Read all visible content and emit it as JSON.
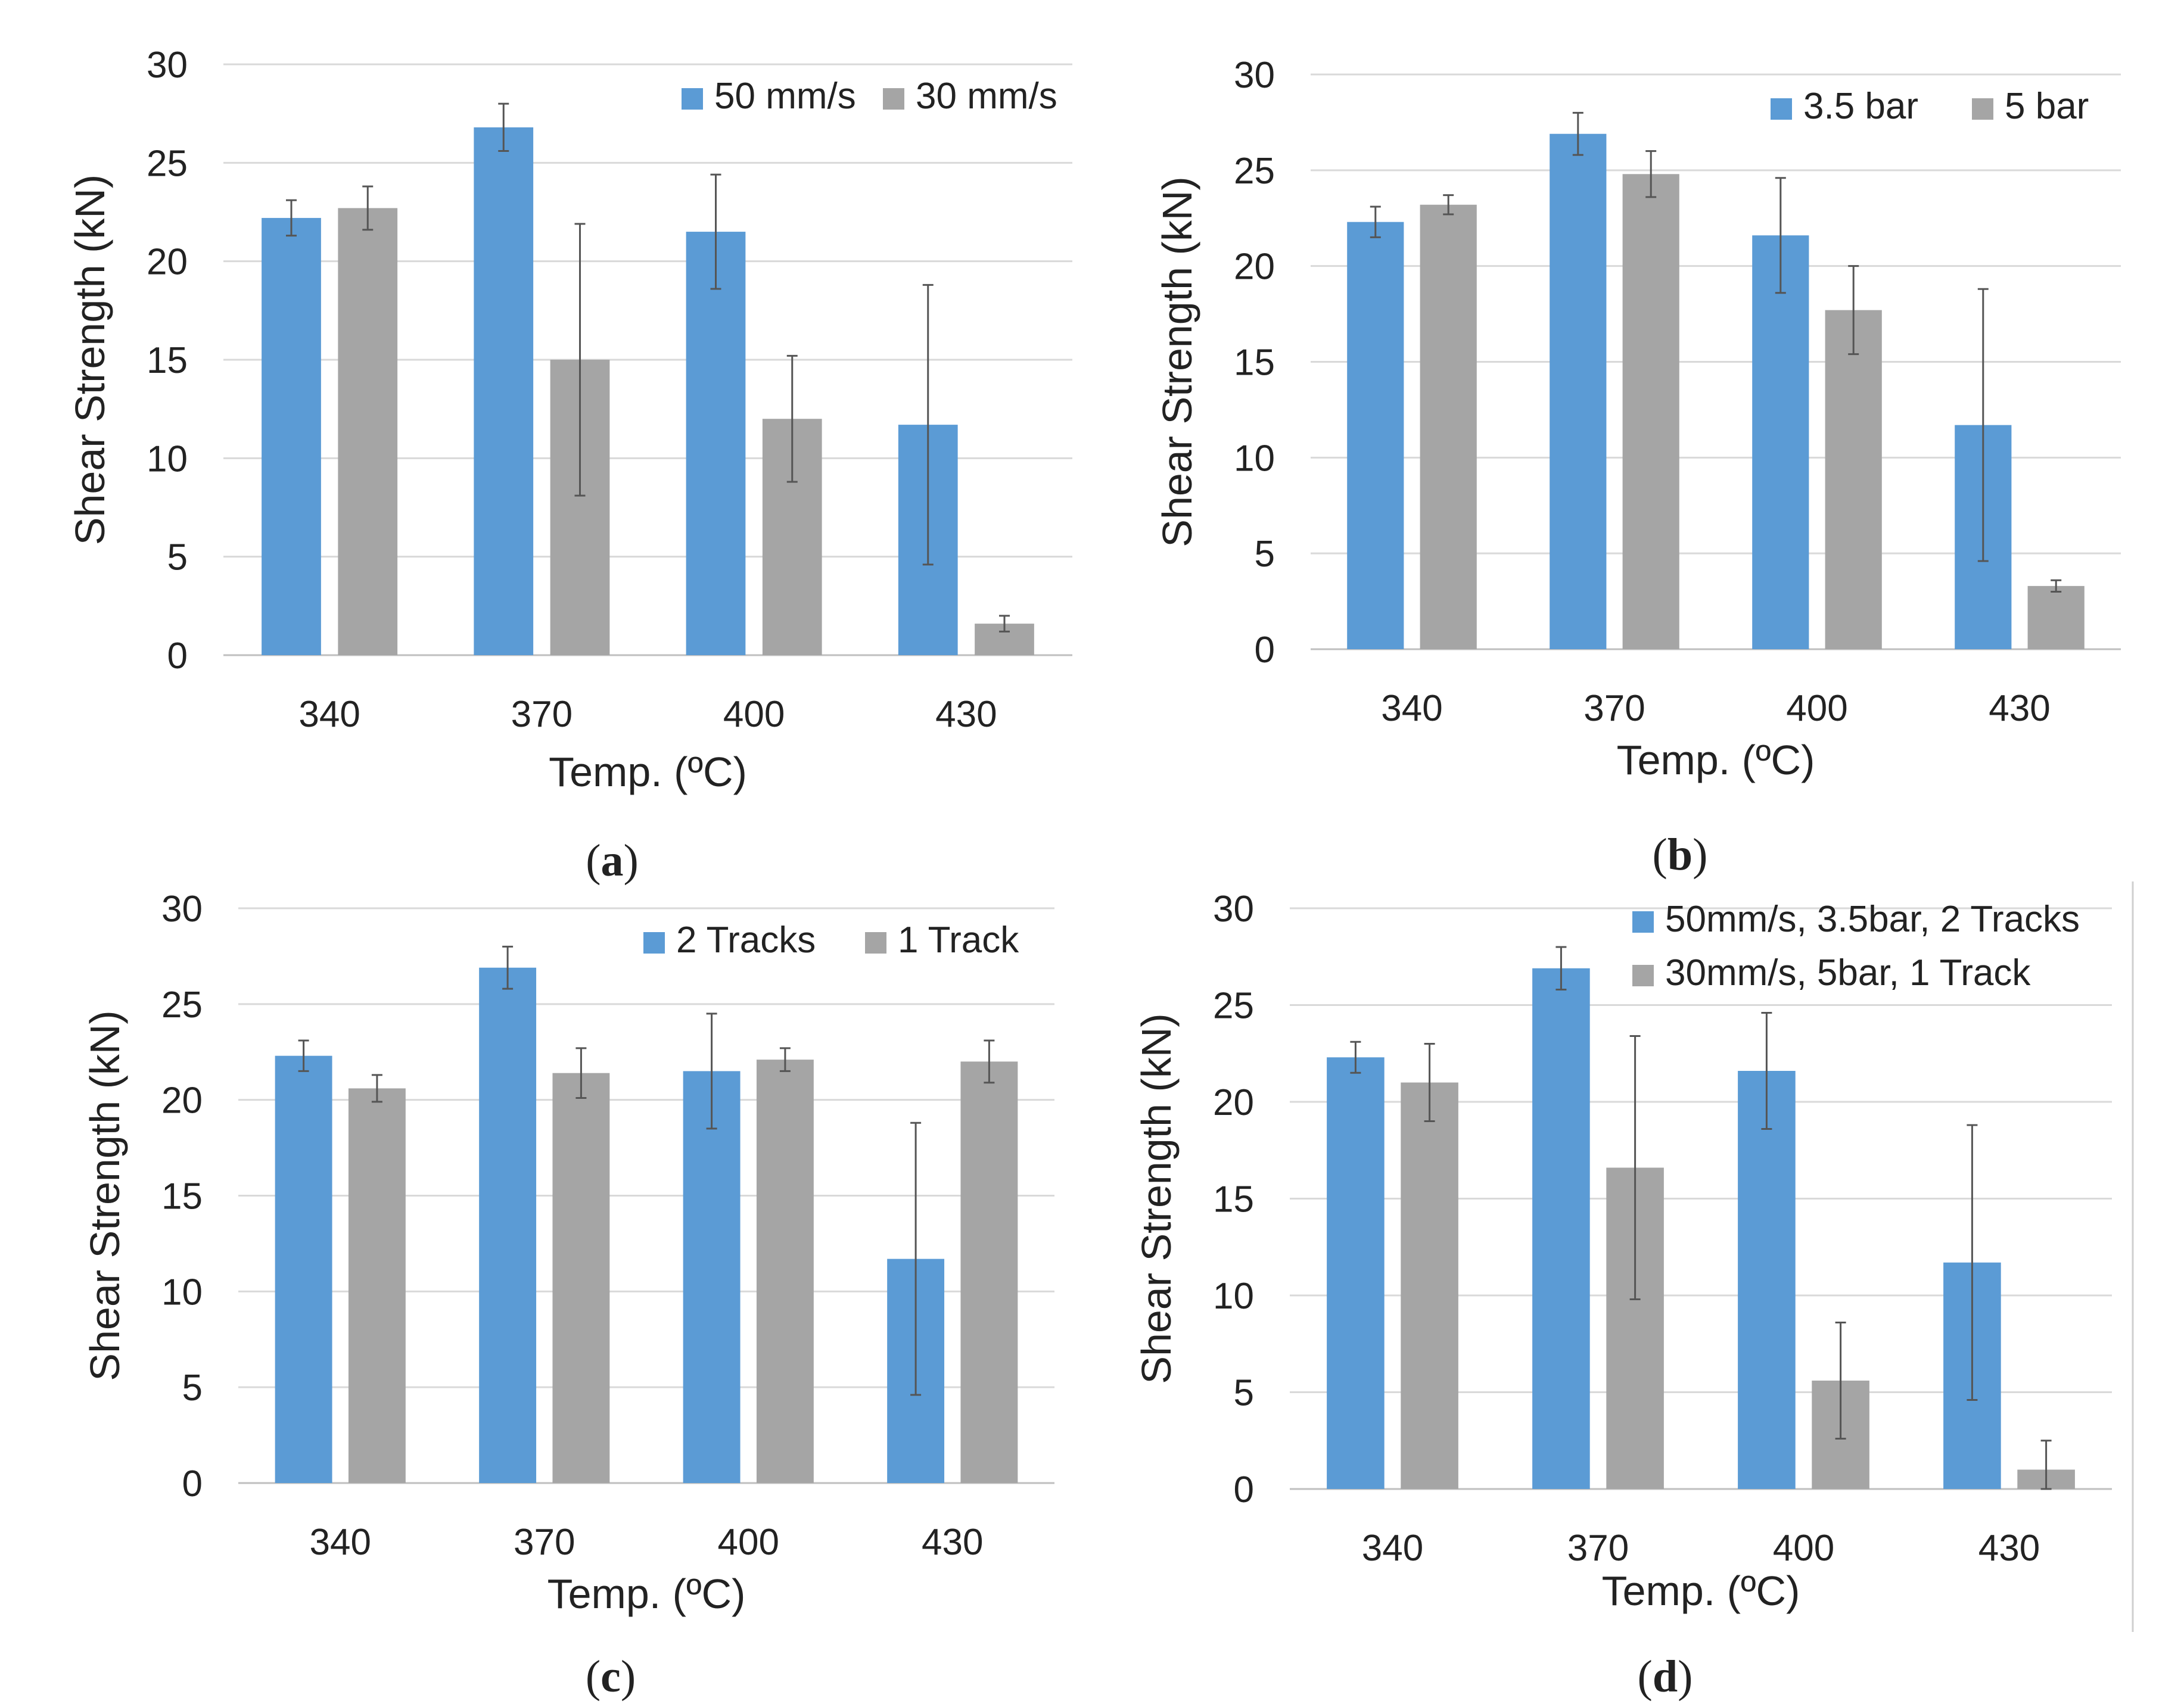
{
  "colors": {
    "series_a": "#5b9bd5",
    "series_b": "#a5a5a5",
    "grid": "#d9d9d9",
    "axis": "#bfbfbf",
    "text": "#222222",
    "error_bar": "#555555"
  },
  "chart_data": [
    {
      "id": "a",
      "type": "bar",
      "panel_label_parts": [
        "(",
        "a",
        ")"
      ],
      "title": "",
      "xlabel": "Temp. (ºC)",
      "ylabel": "Shear Strength (kN)",
      "ylim": [
        0,
        30
      ],
      "yticks": [
        "0",
        "5",
        "10",
        "15",
        "20",
        "25",
        "30"
      ],
      "categories": [
        "340",
        "370",
        "400",
        "430"
      ],
      "legend_position": "top-right",
      "series": [
        {
          "name": "50 mm/s",
          "color_key": "series_a",
          "values": [
            22.2,
            26.8,
            21.5,
            11.7
          ],
          "errors": [
            0.9,
            1.2,
            2.9,
            7.1
          ]
        },
        {
          "name": "30 mm/s",
          "color_key": "series_b",
          "values": [
            22.7,
            15.0,
            12.0,
            1.6
          ],
          "errors": [
            1.1,
            6.9,
            3.2,
            0.4
          ]
        }
      ]
    },
    {
      "id": "b",
      "type": "bar",
      "panel_label_parts": [
        "(",
        "b",
        ")"
      ],
      "title": "",
      "xlabel": "Temp. (ºC)",
      "ylabel": "Shear Strength (kN)",
      "ylim": [
        0,
        30
      ],
      "yticks": [
        "0",
        "5",
        "10",
        "15",
        "20",
        "25",
        "30"
      ],
      "categories": [
        "340",
        "370",
        "400",
        "430"
      ],
      "legend_position": "top-right",
      "series": [
        {
          "name": "3.5 bar",
          "color_key": "series_a",
          "values": [
            22.3,
            26.9,
            21.6,
            11.7
          ],
          "errors": [
            0.8,
            1.1,
            3.0,
            7.1
          ]
        },
        {
          "name": "5 bar",
          "color_key": "series_b",
          "values": [
            23.2,
            24.8,
            17.7,
            3.3
          ],
          "errors": [
            0.5,
            1.2,
            2.3,
            0.3
          ]
        }
      ]
    },
    {
      "id": "c",
      "type": "bar",
      "panel_label_parts": [
        "(",
        "c",
        ")"
      ],
      "title": "",
      "xlabel": "Temp. (ºC)",
      "ylabel": "Shear Strength (kN)",
      "ylim": [
        0,
        30
      ],
      "yticks": [
        "0",
        "5",
        "10",
        "15",
        "20",
        "25",
        "30"
      ],
      "categories": [
        "340",
        "370",
        "400",
        "430"
      ],
      "legend_position": "top-right",
      "series": [
        {
          "name": "2 Tracks",
          "color_key": "series_a",
          "values": [
            22.3,
            26.9,
            21.5,
            11.7
          ],
          "errors": [
            0.8,
            1.1,
            3.0,
            7.1
          ]
        },
        {
          "name": "1 Track",
          "color_key": "series_b",
          "values": [
            20.6,
            21.4,
            22.1,
            22.0
          ],
          "errors": [
            0.7,
            1.3,
            0.6,
            1.1
          ]
        }
      ]
    },
    {
      "id": "d",
      "type": "bar",
      "panel_label_parts": [
        "(",
        "d",
        ")"
      ],
      "title": "",
      "xlabel": "Temp. (ºC)",
      "ylabel": "Shear Strength (kN)",
      "ylim": [
        0,
        30
      ],
      "yticks": [
        "0",
        "5",
        "10",
        "15",
        "20",
        "25",
        "30"
      ],
      "categories": [
        "340",
        "370",
        "400",
        "430"
      ],
      "legend_position": "top-right",
      "series": [
        {
          "name": "50mm/s, 3.5bar, 2 Tracks",
          "color_key": "series_a",
          "values": [
            22.3,
            26.9,
            21.6,
            11.7
          ],
          "errors": [
            0.8,
            1.1,
            3.0,
            7.1
          ]
        },
        {
          "name": "30mm/s, 5bar, 1 Track",
          "color_key": "series_b",
          "values": [
            21.0,
            16.6,
            5.6,
            1.0
          ],
          "errors": [
            2.0,
            6.8,
            3.0,
            1.5
          ]
        }
      ]
    }
  ]
}
